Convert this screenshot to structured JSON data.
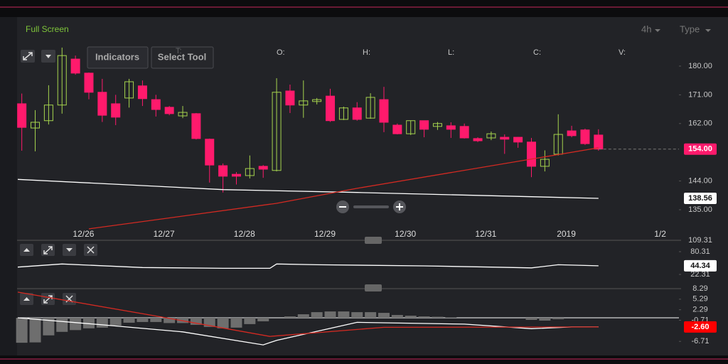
{
  "ui": {
    "full_screen": "Full Screen",
    "interval": "4h",
    "type": "Type",
    "buttons": [
      "Indicators",
      "Select Tool"
    ],
    "legend_keys": [
      "T:",
      "O:",
      "H:",
      "L:",
      "C:",
      "V:"
    ]
  },
  "chart_data": [
    {
      "type": "candlestick",
      "x": [
        0,
        1,
        2,
        3,
        4,
        5,
        6,
        7,
        8,
        9,
        10,
        11,
        12,
        13,
        14,
        15,
        16,
        17,
        18,
        19,
        20,
        21,
        22,
        23,
        24,
        25,
        26,
        27,
        28,
        29,
        30,
        31,
        32,
        33,
        34,
        35,
        36,
        37,
        38,
        39,
        40,
        41,
        42,
        43
      ],
      "open": [
        168.2,
        160.6,
        162.9,
        167.8,
        182.2,
        177.8,
        171.8,
        168.2,
        170.0,
        173.8,
        169.5,
        167.1,
        164.4,
        165.1,
        157.1,
        148.8,
        146.1,
        145.7,
        148.6,
        147.3,
        172.2,
        167.8,
        168.9,
        170.6,
        163.3,
        166.9,
        163.7,
        169.5,
        161.5,
        158.8,
        162.9,
        161.1,
        161.3,
        161.1,
        157.3,
        157.5,
        157.7,
        157.7,
        156.2,
        148.6,
        152.4,
        159.7,
        160.0,
        158.4
      ],
      "high": [
        171.4,
        166.2,
        174.0,
        185.8,
        183.3,
        178.0,
        176.0,
        171.0,
        176.0,
        175.5,
        171.0,
        167.5,
        167.5,
        165.3,
        157.3,
        149.5,
        146.8,
        152.0,
        149.0,
        176.2,
        174.2,
        175.5,
        170.0,
        172.9,
        167.3,
        168.7,
        171.5,
        173.5,
        162.0,
        162.9,
        162.9,
        162.5,
        162.4,
        162.0,
        157.7,
        159.5,
        158.6,
        157.8,
        157.5,
        153.6,
        164.9,
        161.3,
        160.4,
        160.2
      ],
      "low": [
        153.5,
        153.3,
        161.7,
        165.1,
        177.3,
        169.6,
        162.5,
        161.5,
        167.0,
        167.5,
        164.2,
        164.6,
        163.7,
        157.0,
        143.5,
        140.4,
        142.9,
        144.8,
        145.0,
        147.0,
        165.3,
        163.8,
        168.0,
        162.5,
        163.1,
        162.9,
        163.5,
        159.3,
        158.6,
        158.4,
        157.7,
        160.0,
        157.5,
        157.3,
        156.2,
        156.8,
        152.5,
        154.4,
        145.2,
        147.0,
        152.0,
        157.7,
        155.3,
        153.5
      ],
      "close": [
        160.8,
        162.4,
        167.8,
        183.3,
        177.8,
        171.8,
        164.6,
        164.0,
        175.1,
        169.8,
        166.4,
        165.1,
        165.5,
        157.3,
        149.0,
        145.5,
        145.5,
        147.9,
        147.7,
        171.8,
        167.8,
        169.1,
        169.5,
        162.9,
        166.9,
        163.3,
        170.2,
        162.4,
        158.8,
        162.9,
        160.2,
        162.0,
        160.2,
        157.5,
        156.6,
        158.8,
        157.1,
        156.2,
        148.6,
        150.8,
        158.6,
        158.2,
        155.7,
        154.0
      ],
      "up_color": "#a6d44e",
      "down_color": "#ff1a6c",
      "lines": [
        {
          "color": "#ffffff",
          "x": [
            -0.3,
            15,
            25,
            43
          ],
          "values": [
            144.5,
            141.3,
            140.4,
            138.56
          ]
        },
        {
          "color": "#d42a22",
          "x": [
            5,
            19,
            25,
            43
          ],
          "values": [
            129.0,
            137.0,
            141.7,
            154.4
          ]
        }
      ],
      "price_labels": [
        {
          "value": 154.0,
          "label": "154.00",
          "color": "#ff1a6c"
        },
        {
          "value": 138.56,
          "label": "138.56",
          "color": "#ffffff"
        }
      ],
      "xlim": [
        -0.3,
        49
      ],
      "ylim": [
        127.2,
        186.9
      ],
      "xticks": [
        {
          "value": 4.6,
          "label": "12/26"
        },
        {
          "value": 10.6,
          "label": "12/27"
        },
        {
          "value": 16.6,
          "label": "12/28"
        },
        {
          "value": 22.6,
          "label": "12/29"
        },
        {
          "value": 28.6,
          "label": "12/30"
        },
        {
          "value": 34.6,
          "label": "12/31"
        },
        {
          "value": 40.6,
          "label": "2019"
        },
        {
          "value": 47.6,
          "label": "1/2"
        }
      ],
      "yticks": [
        {
          "value": 180,
          "label": "180.00"
        },
        {
          "value": 171,
          "label": "171.00"
        },
        {
          "value": 162,
          "label": "162.00"
        },
        {
          "value": 144,
          "label": "144.00"
        },
        {
          "value": 135,
          "label": "135.00"
        }
      ]
    },
    {
      "type": "line",
      "lines": [
        {
          "color": "#ffffff",
          "x": [
            -0.3,
            3,
            9,
            15,
            18.5,
            19,
            22,
            30,
            35,
            38,
            40,
            43
          ],
          "values": [
            41,
            49,
            40,
            38,
            38,
            49,
            47,
            44,
            41,
            39,
            47,
            44.34
          ]
        }
      ],
      "price_labels": [
        {
          "value": 44.34,
          "label": "44.34",
          "color": "#ffffff"
        }
      ],
      "xlim": [
        -0.3,
        49
      ],
      "ylim": [
        -13.9,
        109.31
      ],
      "yticks": [
        109.31,
        80.31,
        22.31
      ]
    },
    {
      "type": "histogram",
      "x": [
        0,
        1,
        2,
        3,
        4,
        5,
        6,
        7,
        8,
        9,
        10,
        11,
        12,
        13,
        14,
        15,
        16,
        17,
        18,
        19,
        20,
        21,
        22,
        23,
        24,
        25,
        26,
        27,
        28,
        29,
        30,
        31,
        32,
        33,
        34,
        35,
        36,
        37,
        38,
        39,
        40,
        41,
        42,
        43
      ],
      "values": [
        -7.1,
        -7.0,
        -5.0,
        -4.0,
        -3.5,
        -3.0,
        -2.8,
        -2.2,
        -1.4,
        -1.2,
        -1.2,
        -1.5,
        -1.5,
        -2.0,
        -2.6,
        -3.0,
        -2.8,
        -1.8,
        -1.0,
        0.0,
        0.4,
        1.0,
        1.6,
        1.8,
        1.8,
        1.6,
        1.6,
        1.4,
        0.8,
        0.6,
        0.4,
        0.3,
        0.1,
        0,
        0,
        0,
        0,
        0,
        -0.6,
        -0.8,
        -0.4,
        0,
        0,
        0
      ],
      "color": "#6e6e6e",
      "lines": [
        {
          "color": "#ffffff",
          "x": [
            -0.3,
            6,
            12,
            18,
            19,
            25,
            33,
            38,
            41,
            43
          ],
          "values": [
            0.0,
            -2.0,
            -4.0,
            -7.7,
            -6.4,
            -1.3,
            -1.8,
            -3.1,
            -2.6,
            -2.6
          ]
        },
        {
          "color": "#d42a22",
          "x": [
            -0.3,
            10,
            18.5,
            27,
            43
          ],
          "values": [
            7.3,
            0.5,
            -5.3,
            -2.7,
            -2.6
          ]
        }
      ],
      "price_labels": [
        {
          "value": -2.6,
          "label": "-2.60",
          "color": "#ff0000"
        }
      ],
      "xlim": [
        -0.3,
        49
      ],
      "ylim": [
        -10.11,
        8.29
      ],
      "yticks": [
        8.29,
        5.29,
        2.29,
        -0.71,
        -6.71
      ]
    }
  ]
}
